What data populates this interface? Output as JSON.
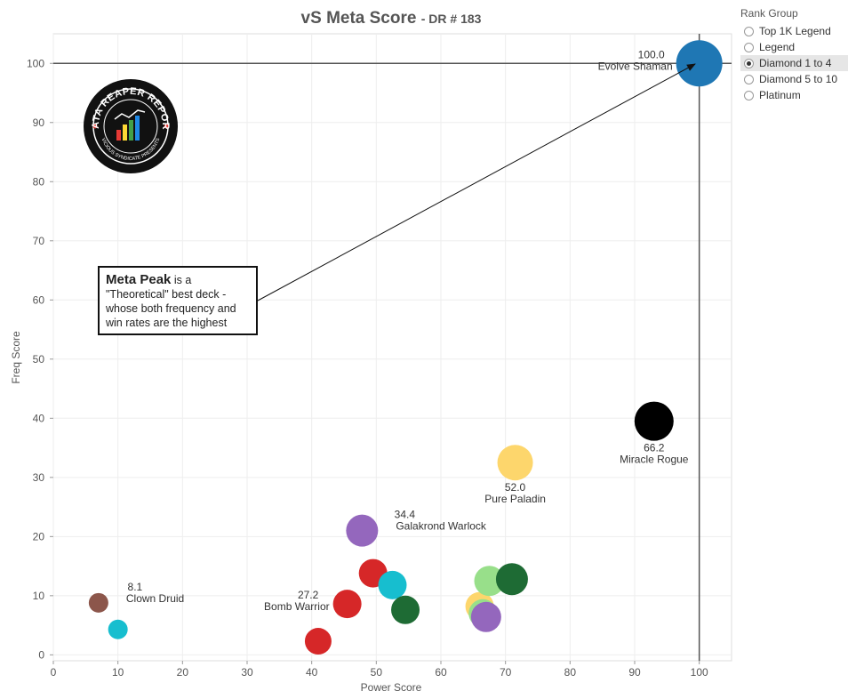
{
  "title": {
    "main": "vS Meta Score",
    "sub": "- DR # 183"
  },
  "legend": {
    "title": "Rank Group",
    "options": [
      "Top 1K Legend",
      "Legend",
      "Diamond 1 to 4",
      "Diamond 5 to 10",
      "Platinum"
    ],
    "selected": "Diamond 1 to 4"
  },
  "annotation": {
    "bold": "Meta Peak",
    "text": " is a \"Theoretical\" best deck - whose both frequency and win rates are the highest"
  },
  "logo": {
    "text_top": "DATA REAPER REPORT",
    "text_bottom": "VICIOUS SYNDICATE PRESENTS"
  },
  "chart_data": {
    "type": "scatter",
    "xlabel": "Power Score",
    "ylabel": "Freq Score",
    "xlim": [
      0,
      105
    ],
    "ylim": [
      -1,
      105
    ],
    "xticks": [
      0,
      10,
      20,
      30,
      40,
      50,
      60,
      70,
      80,
      90,
      100
    ],
    "yticks": [
      0,
      10,
      20,
      30,
      40,
      50,
      60,
      70,
      80,
      90,
      100
    ],
    "grid": true,
    "reference_lines": {
      "x": 100,
      "y": 100
    },
    "points": [
      {
        "x": 100.0,
        "y": 100.0,
        "color": "#1f77b4",
        "r": 26,
        "value_label": "100.0",
        "label": "Evolve Shaman",
        "label_pos": "left"
      },
      {
        "x": 93.0,
        "y": 39.5,
        "color": "#000000",
        "r": 22,
        "value_label": "66.2",
        "label": "Miracle Rogue",
        "label_pos": "below"
      },
      {
        "x": 71.5,
        "y": 32.5,
        "color": "#fdd66c",
        "r": 20,
        "value_label": "52.0",
        "label": "Pure Paladin",
        "label_pos": "below"
      },
      {
        "x": 47.8,
        "y": 21.0,
        "color": "#9467bd",
        "r": 18,
        "value_label": "34.4",
        "label": "Galakrond Warlock",
        "label_pos": "right"
      },
      {
        "x": 7.0,
        "y": 8.8,
        "color": "#8c564b",
        "r": 11,
        "value_label": "8.1",
        "label": "Clown Druid",
        "label_pos": "right"
      },
      {
        "x": 10.0,
        "y": 4.3,
        "color": "#17becf",
        "r": 11,
        "value_label": "",
        "label": "",
        "label_pos": ""
      },
      {
        "x": 41.0,
        "y": 2.3,
        "color": "#d62728",
        "r": 15,
        "value_label": "",
        "label": "",
        "label_pos": ""
      },
      {
        "x": 45.5,
        "y": 8.6,
        "color": "#d62728",
        "r": 16,
        "value_label": "27.2",
        "label": "Bomb Warrior",
        "label_pos": "left"
      },
      {
        "x": 49.5,
        "y": 13.8,
        "color": "#d62728",
        "r": 16,
        "value_label": "",
        "label": "",
        "label_pos": ""
      },
      {
        "x": 52.5,
        "y": 11.8,
        "color": "#17becf",
        "r": 16,
        "value_label": "",
        "label": "",
        "label_pos": ""
      },
      {
        "x": 54.5,
        "y": 7.6,
        "color": "#1e6b34",
        "r": 16,
        "value_label": "",
        "label": "",
        "label_pos": ""
      },
      {
        "x": 66.0,
        "y": 8.2,
        "color": "#fdd66c",
        "r": 16,
        "value_label": "",
        "label": "",
        "label_pos": ""
      },
      {
        "x": 66.5,
        "y": 7.0,
        "color": "#98df8a",
        "r": 16,
        "value_label": "",
        "label": "",
        "label_pos": ""
      },
      {
        "x": 67.5,
        "y": 12.5,
        "color": "#98df8a",
        "r": 17,
        "value_label": "",
        "label": "",
        "label_pos": ""
      },
      {
        "x": 71.0,
        "y": 12.8,
        "color": "#1e6b34",
        "r": 18,
        "value_label": "",
        "label": "",
        "label_pos": ""
      },
      {
        "x": 67.0,
        "y": 6.4,
        "color": "#9467bd",
        "r": 17,
        "value_label": "",
        "label": "",
        "label_pos": ""
      }
    ]
  }
}
